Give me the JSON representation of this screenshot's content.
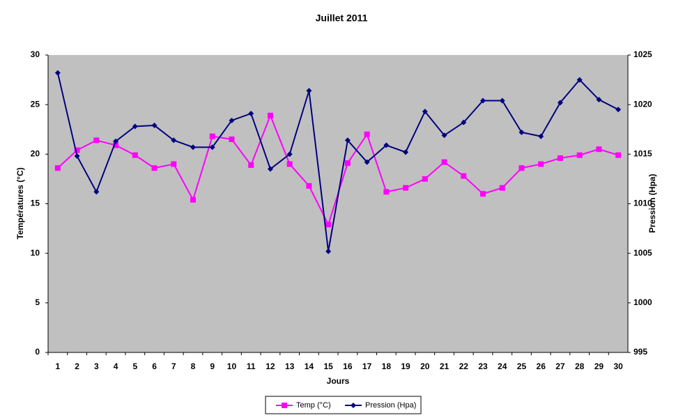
{
  "chart_data": {
    "type": "line",
    "title": "Juillet 2011",
    "x_label": "Jours",
    "y_label": "Températures (°C)",
    "y2_label": "Pression (Hpa)",
    "categories": [
      "1",
      "2",
      "3",
      "4",
      "5",
      "6",
      "7",
      "8",
      "9",
      "10",
      "11",
      "12",
      "13",
      "14",
      "15",
      "16",
      "17",
      "18",
      "19",
      "20",
      "21",
      "22",
      "23",
      "24",
      "25",
      "26",
      "27",
      "28",
      "29",
      "30"
    ],
    "ylim": [
      0,
      30
    ],
    "yticks": [
      0,
      5,
      10,
      15,
      20,
      25,
      30
    ],
    "y2lim": [
      995,
      1025
    ],
    "y2ticks": [
      995,
      1000,
      1005,
      1010,
      1015,
      1020,
      1025
    ],
    "background": "#c0c0c0",
    "series": [
      {
        "name": "Temp (°C)",
        "color": "#ff00ff",
        "marker": "square",
        "values": [
          18.6,
          20.4,
          21.4,
          20.9,
          19.9,
          18.6,
          19.0,
          15.4,
          21.8,
          21.5,
          18.9,
          23.9,
          19.0,
          16.8,
          12.9,
          19.1,
          22.0,
          16.2,
          16.6,
          17.5,
          19.2,
          17.8,
          16.0,
          16.6,
          18.6,
          19.0,
          19.6,
          19.9,
          20.5,
          19.9
        ]
      },
      {
        "name": "Pression (Hpa)",
        "color": "#000080",
        "marker": "diamond",
        "axis": "y2",
        "values": [
          1023.2,
          1014.8,
          1011.2,
          1016.3,
          1017.8,
          1017.9,
          1016.4,
          1015.7,
          1015.7,
          1018.4,
          1019.1,
          1013.5,
          1015.0,
          1021.4,
          1005.2,
          1016.4,
          1014.2,
          1015.9,
          1015.2,
          1019.3,
          1016.9,
          1018.2,
          1020.4,
          1020.4,
          1017.2,
          1016.8,
          1020.2,
          1022.5,
          1020.5,
          1019.5
        ]
      }
    ]
  }
}
